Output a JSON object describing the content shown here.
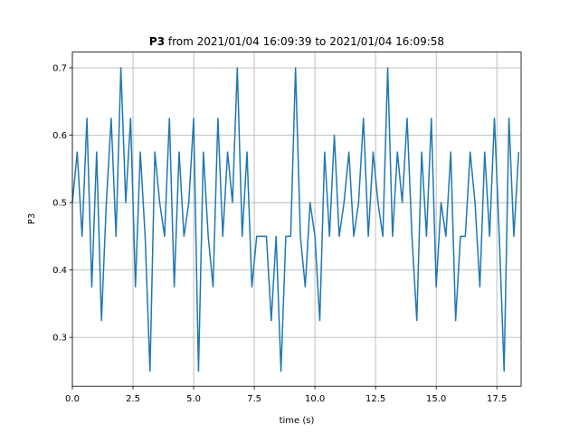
{
  "chart_data": {
    "type": "line",
    "title": {
      "name": "P3",
      "text": "from 2021/01/04 16:09:39 to 2021/01/04 16:09:58"
    },
    "xlabel": "time (s)",
    "ylabel": "P3",
    "x": [
      0,
      0.2,
      0.4,
      0.6,
      0.8,
      1,
      1.2,
      1.4,
      1.6,
      1.8,
      2,
      2.2,
      2.4,
      2.6,
      2.8,
      3,
      3.2,
      3.4,
      3.6,
      3.8,
      4,
      4.2,
      4.4,
      4.6,
      4.8,
      5,
      5.2,
      5.4,
      5.6,
      5.8,
      6,
      6.2,
      6.4,
      6.6,
      6.8,
      7,
      7.2,
      7.4,
      7.6,
      7.8,
      8,
      8.2,
      8.4,
      8.6,
      8.8,
      9,
      9.2,
      9.4,
      9.6,
      9.8,
      10,
      10.2,
      10.4,
      10.6,
      10.8,
      11,
      11.2,
      11.4,
      11.6,
      11.8,
      12,
      12.2,
      12.4,
      12.6,
      12.8,
      13,
      13.2,
      13.4,
      13.6,
      13.8,
      14,
      14.2,
      14.4,
      14.6,
      14.8,
      15,
      15.2,
      15.4,
      15.6,
      15.8,
      16,
      16.2,
      16.4,
      16.6,
      16.8,
      17,
      17.2,
      17.4,
      17.6,
      17.8,
      18,
      18.2,
      18.4
    ],
    "series": [
      {
        "name": "P3",
        "color": "#1f77b4",
        "values": [
          0.5,
          0.575,
          0.45,
          0.625,
          0.375,
          0.575,
          0.325,
          0.5,
          0.625,
          0.45,
          0.7,
          0.5,
          0.625,
          0.375,
          0.575,
          0.45,
          0.25,
          0.575,
          0.5,
          0.45,
          0.625,
          0.375,
          0.575,
          0.45,
          0.5,
          0.625,
          0.25,
          0.575,
          0.45,
          0.375,
          0.625,
          0.45,
          0.575,
          0.5,
          0.7,
          0.45,
          0.575,
          0.375,
          0.45,
          0.45,
          0.45,
          0.325,
          0.45,
          0.25,
          0.45,
          0.45,
          0.7,
          0.45,
          0.375,
          0.5,
          0.45,
          0.325,
          0.575,
          0.45,
          0.6,
          0.45,
          0.5,
          0.575,
          0.45,
          0.5,
          0.625,
          0.45,
          0.575,
          0.5,
          0.45,
          0.7,
          0.45,
          0.575,
          0.5,
          0.625,
          0.45,
          0.325,
          0.575,
          0.45,
          0.625,
          0.375,
          0.5,
          0.45,
          0.575,
          0.325,
          0.45,
          0.45,
          0.575,
          0.5,
          0.375,
          0.575,
          0.45,
          0.625,
          0.45,
          0.25,
          0.625,
          0.45,
          0.575
        ]
      }
    ],
    "xlim": [
      0,
      18.5
    ],
    "xticks": [
      {
        "value": 0,
        "label": "0.0"
      },
      {
        "value": 2.5,
        "label": "2.5"
      },
      {
        "value": 5,
        "label": "5.0"
      },
      {
        "value": 7.5,
        "label": "7.5"
      },
      {
        "value": 10,
        "label": "10.0"
      },
      {
        "value": 12.5,
        "label": "12.5"
      },
      {
        "value": 15,
        "label": "15.0"
      },
      {
        "value": 17.5,
        "label": "17.5"
      }
    ],
    "ylim": [
      0.2275,
      0.7233
    ],
    "yticks": [
      0.3,
      0.4,
      0.5,
      0.6,
      0.7
    ],
    "grid": true
  }
}
